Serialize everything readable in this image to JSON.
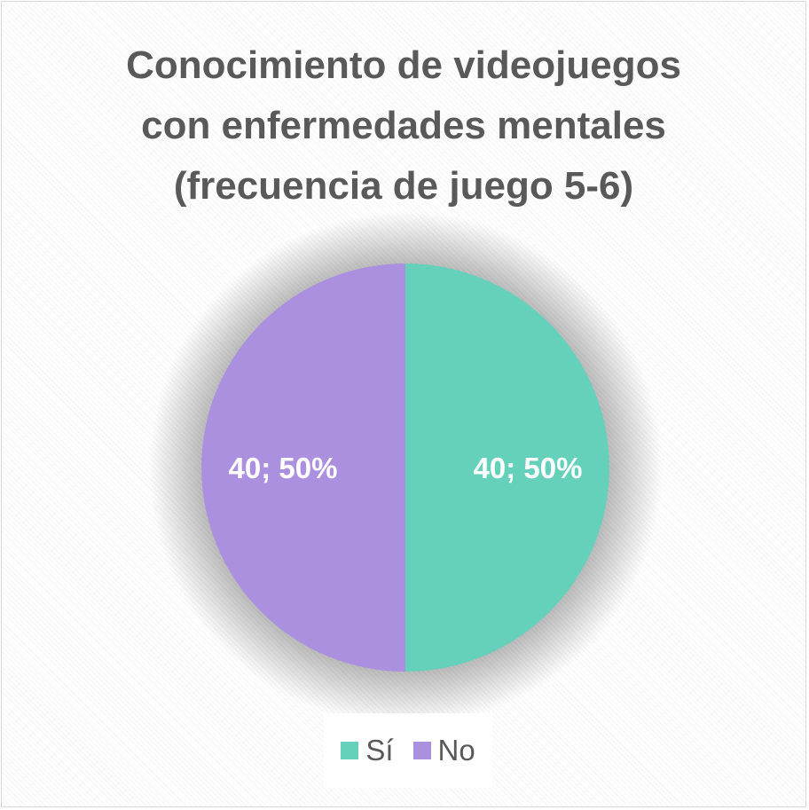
{
  "chart_data": {
    "type": "pie",
    "title": [
      "Conocimiento de videojuegos",
      "con enfermedades mentales",
      "(frecuencia de juego 5-6)"
    ],
    "series": [
      {
        "name": "Sí",
        "value": 40,
        "percent": "50%",
        "label": "40; 50%",
        "color": "#66d1bb"
      },
      {
        "name": "No",
        "value": 40,
        "percent": "50%",
        "label": "40; 50%",
        "color": "#ab90e0"
      }
    ],
    "legend_position": "bottom"
  }
}
